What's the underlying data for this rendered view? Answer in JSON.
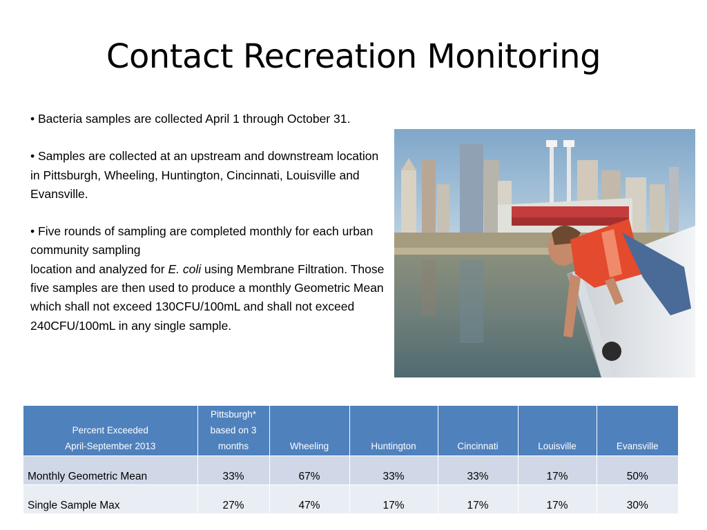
{
  "slide": {
    "title": "Contact Recreation Monitoring"
  },
  "bullets": [
    {
      "prefix": "• ",
      "text": "Bacteria samples are collected April 1 through October 31."
    },
    {
      "prefix": "• ",
      "text": "Samples are collected at an upstream and downstream location in Pittsburgh, Wheeling, Huntington, Cincinnati, Louisville and Evansville."
    },
    {
      "prefix": "• ",
      "text_a": "Five rounds of sampling are completed monthly for each urban community sampling",
      "text_b": "location and analyzed for ",
      "italic": "E. coli",
      "text_c": " using Membrane Filtration.  Those five samples are then used to produce a monthly Geometric Mean which shall not exceed 130CFU/100mL  and shall not exceed 240CFU/100mL in any single sample."
    }
  ],
  "photo": {
    "icon": "river-sampling-photo"
  },
  "table": {
    "header": {
      "col0_line1": "Percent Exceeded",
      "col0_line2": "April-September 2013",
      "pittsburgh_line1": "Pittsburgh*",
      "pittsburgh_line2": "based on 3",
      "pittsburgh_line3": "months",
      "wheeling": "Wheeling",
      "huntington": "Huntington",
      "cincinnati": "Cincinnati",
      "louisville": "Louisville",
      "evansville": "Evansville"
    },
    "rows": [
      {
        "label": "Monthly Geometric Mean",
        "values": [
          "33%",
          "67%",
          "33%",
          "33%",
          "17%",
          "50%"
        ]
      },
      {
        "label": "Single Sample Max",
        "values": [
          "27%",
          "47%",
          "17%",
          "17%",
          "17%",
          "30%"
        ]
      }
    ],
    "colors": {
      "header_bg": "#4f81bd",
      "row1_bg": "#d0d8e8",
      "row2_bg": "#e9edf4"
    }
  }
}
